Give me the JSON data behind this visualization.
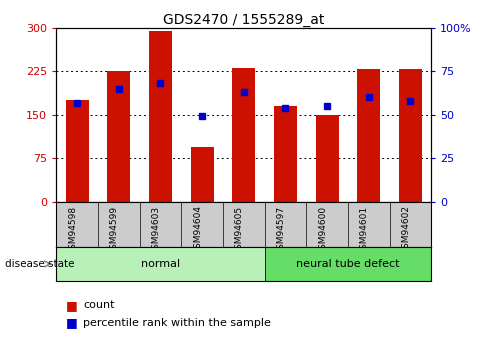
{
  "title": "GDS2470 / 1555289_at",
  "samples": [
    "GSM94598",
    "GSM94599",
    "GSM94603",
    "GSM94604",
    "GSM94605",
    "GSM94597",
    "GSM94600",
    "GSM94601",
    "GSM94602"
  ],
  "count_values": [
    175,
    226,
    295,
    95,
    230,
    165,
    150,
    228,
    228
  ],
  "percentile_values": [
    57,
    65,
    68,
    49,
    63,
    54,
    55,
    60,
    58
  ],
  "groups": [
    {
      "label": "normal",
      "start": 0,
      "end": 5,
      "color": "#b8f0b8"
    },
    {
      "label": "neural tube defect",
      "start": 5,
      "end": 9,
      "color": "#66dd66"
    }
  ],
  "left_axis_color": "#cc0000",
  "right_axis_color": "#0000cc",
  "bar_color": "#cc1100",
  "dot_color": "#0000cc",
  "ylim_left": [
    0,
    300
  ],
  "ylim_right": [
    0,
    100
  ],
  "yticks_left": [
    0,
    75,
    150,
    225,
    300
  ],
  "yticks_right": [
    0,
    25,
    50,
    75,
    100
  ],
  "ytick_labels_left": [
    "0",
    "75",
    "150",
    "225",
    "300"
  ],
  "ytick_labels_right": [
    "0",
    "25",
    "50",
    "75",
    "100%"
  ],
  "legend_count_label": "count",
  "legend_percentile_label": "percentile rank within the sample",
  "disease_state_label": "disease state",
  "bar_width": 0.55,
  "plot_bg_color": "#ffffff",
  "tick_label_area_color": "#cccccc"
}
